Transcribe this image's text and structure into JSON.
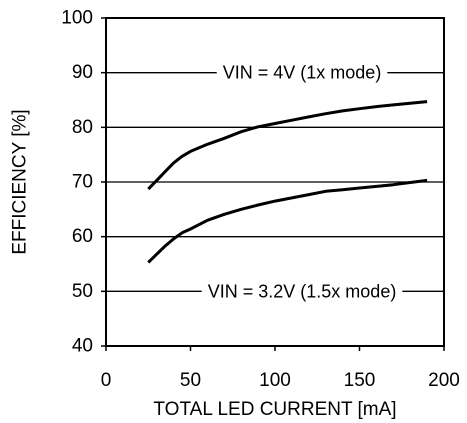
{
  "chart_data": {
    "type": "line",
    "title": "",
    "xlabel": "TOTAL LED CURRENT [mA]",
    "ylabel": "EFFICIENCY [%]",
    "xlim": [
      0,
      200
    ],
    "ylim": [
      40,
      100
    ],
    "xticks": [
      0,
      50,
      100,
      150,
      200
    ],
    "yticks": [
      40,
      50,
      60,
      70,
      80,
      90,
      100
    ],
    "grid": "horizontal",
    "legend": "none",
    "line_color": "#000000",
    "series": [
      {
        "x": [
          25,
          30,
          35,
          40,
          45,
          50,
          60,
          70,
          80,
          90,
          100,
          110,
          120,
          130,
          140,
          150,
          160,
          170,
          180,
          190
        ],
        "y": [
          68.7,
          70.3,
          71.9,
          73.5,
          74.7,
          75.6,
          76.9,
          78.0,
          79.2,
          80.1,
          80.7,
          81.3,
          81.9,
          82.5,
          83.0,
          83.4,
          83.8,
          84.1,
          84.4,
          84.7
        ]
      },
      {
        "x": [
          25,
          30,
          35,
          40,
          45,
          50,
          60,
          70,
          80,
          90,
          100,
          110,
          120,
          130,
          140,
          150,
          160,
          170,
          180,
          190
        ],
        "y": [
          55.3,
          56.8,
          58.3,
          59.6,
          60.7,
          61.4,
          63.0,
          64.1,
          65.0,
          65.8,
          66.5,
          67.1,
          67.7,
          68.3,
          68.6,
          68.9,
          69.2,
          69.5,
          69.9,
          70.3
        ]
      }
    ],
    "annotations": [
      {
        "text": "VIN = 4V (1x mode)",
        "x": 116,
        "y": 90
      },
      {
        "text": "VIN = 3.2V (1.5x mode)",
        "x": 116,
        "y": 50
      }
    ]
  }
}
